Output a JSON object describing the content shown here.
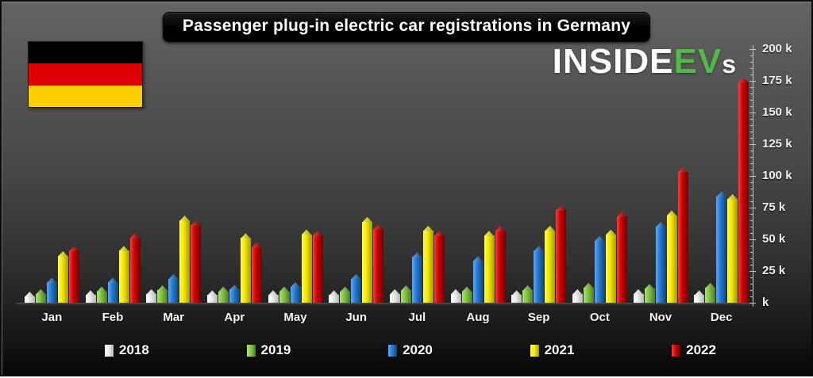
{
  "header": {
    "title": "Passenger plug-in electric car registrations in Germany",
    "logo": {
      "part1": "INSIDE",
      "part2": "EV",
      "part3": "s"
    }
  },
  "flag": {
    "country": "germany",
    "stripe_colors": [
      "#000000",
      "#dd0000",
      "#ffce00"
    ]
  },
  "chart_data": {
    "type": "bar",
    "title": "Passenger plug-in electric car registrations in Germany",
    "unit": "thousands of registrations",
    "xlabel": "",
    "ylabel": "",
    "ylim": [
      0,
      200
    ],
    "y_axis_labels": [
      "200 k",
      "175 k",
      "150 k",
      "125 k",
      "100 k",
      "75 k",
      "50 k",
      "25 k",
      "k"
    ],
    "y_major_step_k": 25,
    "y_minor_step_k": 5,
    "grid": false,
    "legend_position": "bottom",
    "categories": [
      "Jan",
      "Feb",
      "Mar",
      "Apr",
      "May",
      "Jun",
      "Jul",
      "Aug",
      "Sep",
      "Oct",
      "Nov",
      "Dec"
    ],
    "series": [
      {
        "name": "2018",
        "color": "#ececec",
        "color_light": "#ffffff",
        "color_dark": "#b5b5b5",
        "values_k": [
          5,
          6,
          7,
          6,
          6,
          6,
          7,
          7,
          6,
          7,
          7,
          6
        ]
      },
      {
        "name": "2019",
        "color": "#82c341",
        "color_light": "#aede7f",
        "color_dark": "#4c7c25",
        "values_k": [
          7,
          9,
          10,
          9,
          9,
          9,
          10,
          9,
          10,
          12,
          11,
          12
        ]
      },
      {
        "name": "2020",
        "color": "#2478d4",
        "color_light": "#64a7ec",
        "color_dark": "#114577",
        "values_k": [
          16,
          16,
          19,
          10.5,
          12.5,
          19,
          36,
          33,
          41,
          49,
          60,
          84
        ]
      },
      {
        "name": "2021",
        "color": "#f3e800",
        "color_light": "#fcf76e",
        "color_dark": "#a39b00",
        "values_k": [
          37,
          41,
          65,
          51,
          54,
          64,
          57,
          53,
          57,
          54,
          69,
          82
        ]
      },
      {
        "name": "2022",
        "color": "#cc0000",
        "color_light": "#ee4444",
        "color_dark": "#740000",
        "values_k": [
          41,
          51,
          61,
          44,
          53,
          58,
          53,
          57,
          73,
          68,
          103,
          174
        ]
      }
    ]
  },
  "layout_note": ""
}
